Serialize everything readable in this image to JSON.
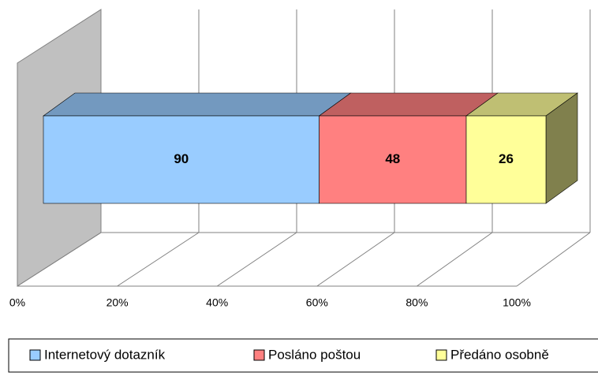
{
  "chart_data": {
    "type": "bar",
    "orientation": "horizontal",
    "stacked": "percent",
    "three_d": true,
    "categories": [
      null
    ],
    "series": [
      {
        "name": "Internetový dotazník",
        "color": "#99ccff",
        "values": [
          90
        ]
      },
      {
        "name": "Posláno poštou",
        "color": "#ff8080",
        "values": [
          48
        ]
      },
      {
        "name": "Předáno osobně",
        "color": "#ffff99",
        "values": [
          26
        ]
      }
    ],
    "xlim": [
      0,
      100
    ],
    "xticks": [
      {
        "value": 0,
        "label": "0%"
      },
      {
        "value": 20,
        "label": "20%"
      },
      {
        "value": 40,
        "label": "40%"
      },
      {
        "value": 60,
        "label": "60%"
      },
      {
        "value": 80,
        "label": "80%"
      },
      {
        "value": 100,
        "label": "100%"
      }
    ],
    "grid": true,
    "legend": "bottom",
    "data_labels": true
  }
}
